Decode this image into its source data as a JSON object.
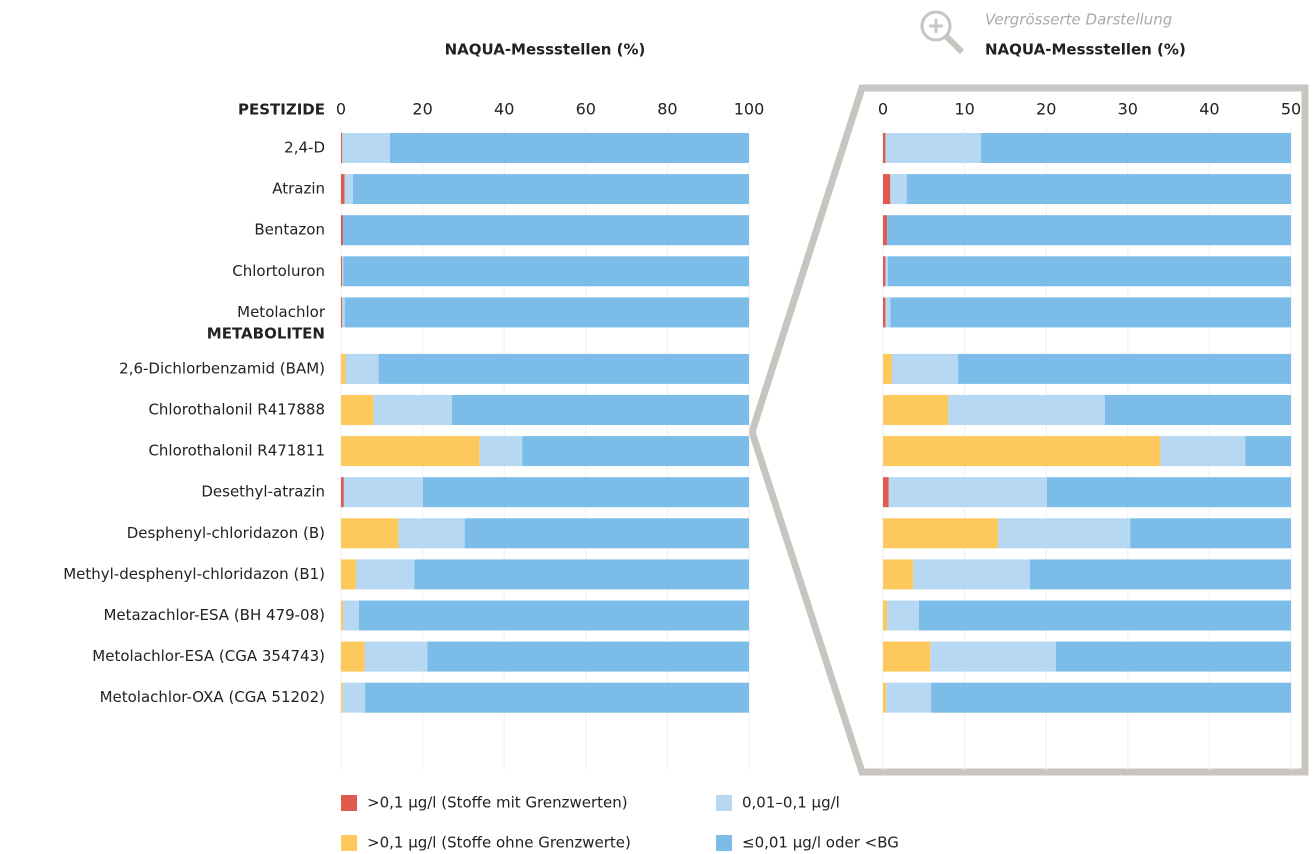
{
  "chart_data": {
    "type": "stacked-bar",
    "orientation": "horizontal",
    "xlabel": "NAQUA-Messstellen (%)",
    "groups": [
      {
        "name": "PESTIZIDE",
        "categories": [
          "2,4-D",
          "Atrazin",
          "Bentazon",
          "Chlortoluron",
          "Metolachlor"
        ]
      },
      {
        "name": "METABOLITEN",
        "categories": [
          "2,6-Dichlorbenzamid (BAM)",
          "Chlorothalonil R417888",
          "Chlorothalonil R471811",
          "Desethyl-atrazin",
          "Desphenyl-chloridazon (B)",
          "Methyl-desphenyl-chloridazon (B1)",
          "Metazachlor-ESA (BH 479-08)",
          "Metolachlor-ESA (CGA 354743)",
          "Metolachlor-OXA (CGA 51202)"
        ]
      }
    ],
    "series": [
      {
        "name": ">0,1 µg/l (Stoffe mit Grenzwerten)",
        "color": "#e05a4e",
        "values": [
          0.3,
          0.9,
          0.5,
          0.3,
          0.3,
          0,
          0,
          0,
          0.7,
          0,
          0,
          0,
          0,
          0
        ]
      },
      {
        "name": ">0,1 µg/l (Stoffe ohne Grenzwerte)",
        "color": "#fdc95c",
        "values": [
          0,
          0,
          0,
          0,
          0,
          1.1,
          8.0,
          34.0,
          0,
          14.1,
          3.7,
          0.5,
          5.8,
          0.4
        ]
      },
      {
        "name": "0,01–0,1 µg/l",
        "color": "#b6d8f2",
        "values": [
          11.7,
          2.0,
          0,
          0.3,
          0.6,
          8.1,
          19.2,
          10.4,
          19.4,
          16.2,
          14.3,
          3.9,
          15.4,
          5.5
        ]
      },
      {
        "name": "≤0,01 µg/l oder <BG",
        "color": "#7bbde8",
        "values": [
          88.0,
          97.1,
          99.5,
          99.4,
          99.1,
          90.8,
          72.8,
          55.6,
          79.9,
          69.7,
          82.0,
          95.6,
          78.8,
          94.1
        ]
      }
    ],
    "xlim": [
      0,
      100
    ],
    "xticks": [
      0,
      20,
      40,
      60,
      80,
      100
    ],
    "zoom": {
      "title": "Vergrösserte Darstellung",
      "xlabel": "NAQUA-Messstellen (%)",
      "xlim": [
        0,
        50
      ],
      "xticks": [
        0,
        10,
        20,
        30,
        40,
        50
      ]
    },
    "grid": true
  }
}
